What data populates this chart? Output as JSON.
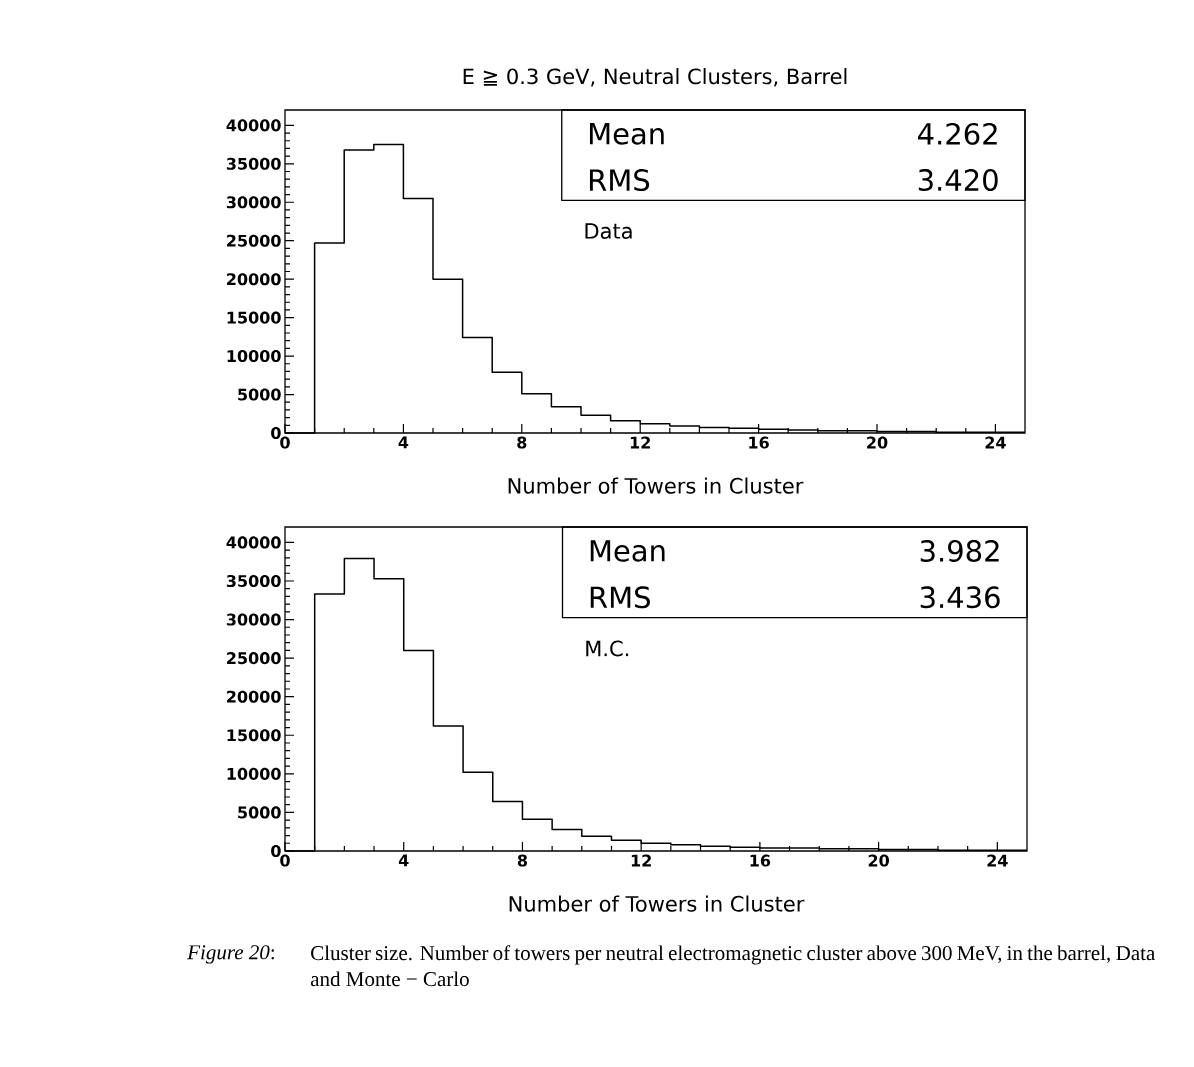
{
  "chart_data": [
    {
      "type": "histogram",
      "title": "E ≧ 0.3 GeV, Neutral Clusters, Barrel",
      "xlabel": "Number of Towers in Cluster",
      "color": "#000000",
      "bins": [
        0,
        1,
        2,
        3,
        4,
        5,
        6,
        7,
        8,
        9,
        10,
        11,
        12,
        13,
        14,
        15,
        16,
        17,
        18,
        19,
        20,
        21,
        22,
        23,
        24,
        25
      ],
      "values": [
        0,
        24700,
        36800,
        37500,
        30500,
        20000,
        12400,
        7900,
        5100,
        3400,
        2300,
        1600,
        1200,
        900,
        700,
        600,
        500,
        400,
        300,
        300,
        200,
        200,
        100,
        100,
        100
      ],
      "xlim": [
        0,
        25
      ],
      "ylim": [
        0,
        42000
      ],
      "xticks": [
        0,
        4,
        8,
        12,
        16,
        20,
        24
      ],
      "yticks": [
        0,
        5000,
        10000,
        15000,
        20000,
        25000,
        30000,
        35000,
        40000
      ],
      "annotations": [
        "Mean",
        "4.262",
        "RMS",
        "3.420",
        "Data"
      ]
    },
    {
      "type": "histogram",
      "xlabel": "Number of Towers in Cluster",
      "color": "#000000",
      "bins": [
        0,
        1,
        2,
        3,
        4,
        5,
        6,
        7,
        8,
        9,
        10,
        11,
        12,
        13,
        14,
        15,
        16,
        17,
        18,
        19,
        20,
        21,
        22,
        23,
        24,
        25
      ],
      "values": [
        0,
        33300,
        37900,
        35300,
        26000,
        16200,
        10200,
        6400,
        4100,
        2800,
        1900,
        1400,
        1000,
        800,
        600,
        500,
        400,
        400,
        300,
        300,
        200,
        200,
        100,
        100,
        100
      ],
      "xlim": [
        0,
        25
      ],
      "ylim": [
        0,
        42000
      ],
      "xticks": [
        0,
        4,
        8,
        12,
        16,
        20,
        24
      ],
      "yticks": [
        0,
        5000,
        10000,
        15000,
        20000,
        25000,
        30000,
        35000,
        40000
      ],
      "annotations": [
        "Mean",
        "3.982",
        "RMS",
        "3.436",
        "M.C.",
        "*Figure 20*:",
        "Cluster size.  Number of towers per neutral electromagnetic cluster above 300 MeV, in the barrel, Data and Monte − Carlo"
      ]
    }
  ]
}
